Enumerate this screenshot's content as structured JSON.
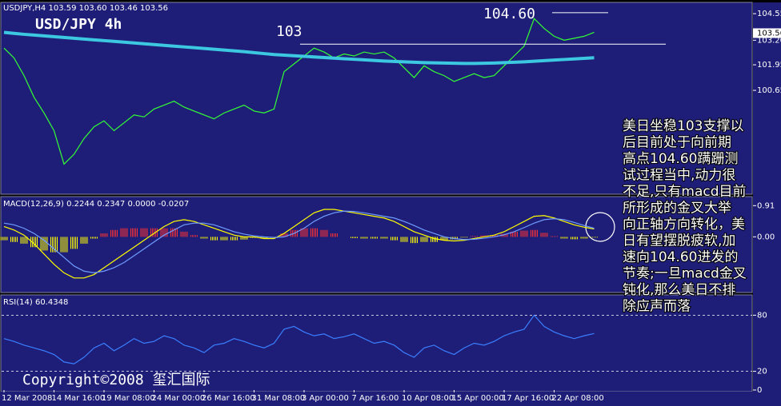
{
  "chart_data": [
    {
      "type": "line",
      "title": "USD/JPY 4h",
      "header": "USDJPY,H4 103.59 103.60 103.46 103.56",
      "ylim": [
        95.41,
        104.92
      ],
      "yticks": [
        100.65,
        101.95,
        {
          "value": 103.2,
          "label": "103.20"
        },
        104.55
      ],
      "last_price": 103.56,
      "levels": [
        103,
        {
          "value": 104.6,
          "label": "104.60"
        }
      ],
      "series": [
        {
          "color": "#33ff33",
          "values": [
            102.8,
            102.3,
            101.4,
            100.3,
            99.5,
            98.6,
            96.9,
            97.4,
            98.2,
            98.8,
            99.1,
            98.6,
            99.0,
            99.4,
            99.3,
            99.7,
            99.9,
            100.1,
            99.8,
            99.6,
            99.4,
            99.2,
            99.5,
            99.7,
            99.9,
            99.6,
            99.5,
            99.7,
            101.6,
            102.0,
            102.4,
            102.8,
            102.6,
            102.3,
            102.5,
            102.4,
            102.6,
            102.5,
            102.6,
            102.3,
            101.8,
            101.3,
            101.9,
            101.6,
            101.4,
            101.1,
            101.3,
            101.5,
            101.3,
            101.4,
            101.9,
            102.4,
            102.9,
            104.3,
            103.8,
            103.4,
            103.2,
            103.3,
            103.4,
            103.6
          ]
        },
        {
          "color": "#3cc8e0",
          "values": [
            103.6,
            103.55,
            103.5,
            103.46,
            103.42,
            103.38,
            103.34,
            103.3,
            103.26,
            103.22,
            103.18,
            103.14,
            103.1,
            103.06,
            103.02,
            102.98,
            102.94,
            102.9,
            102.86,
            102.82,
            102.78,
            102.74,
            102.7,
            102.66,
            102.62,
            102.57,
            102.52,
            102.47,
            102.44,
            102.41,
            102.38,
            102.35,
            102.32,
            102.29,
            102.26,
            102.23,
            102.2,
            102.17,
            102.14,
            102.12,
            102.1,
            102.08,
            102.06,
            102.05,
            102.04,
            102.03,
            102.02,
            102.02,
            102.03,
            102.04,
            102.06,
            102.08,
            102.1,
            102.13,
            102.16,
            102.19,
            102.22,
            102.25,
            102.28,
            102.31
          ]
        }
      ],
      "annotation": [
        "美日坐稳103支撑以",
        "后目前处于向前期",
        "高点104.60蹒跚测",
        "试过程当中,动力很",
        "不足,只有macd目前",
        "所形成的金叉大举",
        "向正轴方向转化，美",
        "日有望摆脱疲软,加",
        "速向104.60进发的",
        "节奏;一旦macd金叉",
        "钝化,那么美日不排",
        "除应声而落"
      ],
      "copyright": "Copyright©2008 玺汇国际"
    },
    {
      "type": "macd",
      "header": "MACD(12,26,9) 0.2244 0.2347 0.0000 -0.0207",
      "ylim": [
        -1.6,
        1.15
      ],
      "yticks": [
        {
          "value": 0,
          "label": "0.00"
        },
        0.91
      ],
      "histogram": {
        "positive_color": "#ff3030",
        "negative_color": "#ffff00",
        "values": [
          -0.1,
          -0.15,
          -0.2,
          -0.3,
          -0.4,
          -0.45,
          -0.45,
          -0.35,
          -0.2,
          -0.05,
          0.1,
          0.2,
          0.25,
          0.25,
          0.25,
          0.25,
          0.25,
          0.25,
          0.15,
          0.05,
          -0.05,
          -0.1,
          -0.1,
          -0.1,
          -0.08,
          -0.03,
          -0.05,
          -0.03,
          0.1,
          0.2,
          0.25,
          0.25,
          0.2,
          0.1,
          0,
          -0.04,
          -0.05,
          -0.05,
          -0.05,
          -0.1,
          -0.15,
          -0.18,
          -0.15,
          -0.15,
          -0.1,
          -0.07,
          -0.02,
          0.02,
          0.04,
          0.05,
          0.09,
          0.15,
          0.18,
          0.2,
          0.12,
          0.02,
          -0.05,
          -0.07,
          -0.05,
          -0.02
        ]
      },
      "series": [
        {
          "color": "#ffff00",
          "values": [
            0.3,
            0.2,
            0.05,
            -0.2,
            -0.5,
            -0.8,
            -1.05,
            -1.2,
            -1.2,
            -1.1,
            -0.9,
            -0.7,
            -0.5,
            -0.3,
            -0.1,
            0.1,
            0.3,
            0.45,
            0.5,
            0.45,
            0.35,
            0.25,
            0.15,
            0.05,
            0,
            0.0,
            -0.05,
            -0.05,
            0.1,
            0.3,
            0.5,
            0.7,
            0.8,
            0.8,
            0.75,
            0.7,
            0.65,
            0.6,
            0.55,
            0.45,
            0.3,
            0.15,
            0.05,
            -0.05,
            -0.1,
            -0.12,
            -0.1,
            -0.05,
            0,
            0.05,
            0.15,
            0.3,
            0.45,
            0.6,
            0.62,
            0.55,
            0.45,
            0.35,
            0.28,
            0.23
          ]
        },
        {
          "color": "#6f9cff",
          "values": [
            0.4,
            0.35,
            0.25,
            0.1,
            -0.1,
            -0.35,
            -0.6,
            -0.85,
            -1.0,
            -1.05,
            -1.0,
            -0.9,
            -0.75,
            -0.55,
            -0.35,
            -0.15,
            0.05,
            0.2,
            0.35,
            0.4,
            0.4,
            0.35,
            0.25,
            0.15,
            0.08,
            0.03,
            0,
            -0.02,
            0.0,
            0.1,
            0.25,
            0.45,
            0.6,
            0.7,
            0.75,
            0.74,
            0.7,
            0.65,
            0.6,
            0.55,
            0.45,
            0.33,
            0.2,
            0.1,
            0.0,
            -0.05,
            -0.08,
            -0.07,
            -0.04,
            0,
            0.06,
            0.15,
            0.27,
            0.4,
            0.5,
            0.53,
            0.5,
            0.42,
            0.33,
            0.25
          ]
        }
      ]
    },
    {
      "type": "line",
      "header": "RSI(14) 60.4348",
      "ylim": [
        0,
        100
      ],
      "yticks": [
        0,
        20,
        80
      ],
      "grid": true,
      "categories": [
        "12 Mar 2008",
        null,
        null,
        null,
        null,
        "14 Mar 16:00",
        null,
        null,
        null,
        null,
        "19 Mar 08:00",
        null,
        null,
        null,
        null,
        "24 Mar 00:00",
        null,
        null,
        null,
        null,
        "26 Mar 16:00",
        null,
        null,
        null,
        null,
        "31 Mar 08:00",
        null,
        null,
        null,
        null,
        "3 Apr 00:00",
        null,
        null,
        null,
        null,
        "7 Apr 16:00",
        null,
        null,
        null,
        null,
        "10 Apr 08:00",
        null,
        null,
        null,
        null,
        "15 Apr 00:00",
        null,
        null,
        null,
        null,
        "17 Apr 16:00",
        null,
        null,
        null,
        null,
        "22 Apr 08:00",
        null,
        null,
        null,
        null
      ],
      "series": [
        {
          "color": "#3a7fff",
          "values": [
            55,
            52,
            48,
            45,
            42,
            38,
            30,
            28,
            35,
            45,
            50,
            42,
            48,
            55,
            50,
            52,
            58,
            55,
            48,
            45,
            40,
            48,
            50,
            55,
            52,
            48,
            45,
            50,
            65,
            68,
            62,
            58,
            60,
            55,
            57,
            60,
            55,
            50,
            52,
            48,
            40,
            35,
            45,
            48,
            42,
            38,
            45,
            50,
            48,
            52,
            58,
            62,
            65,
            80,
            68,
            62,
            58,
            55,
            58,
            60.4348
          ]
        }
      ]
    }
  ]
}
